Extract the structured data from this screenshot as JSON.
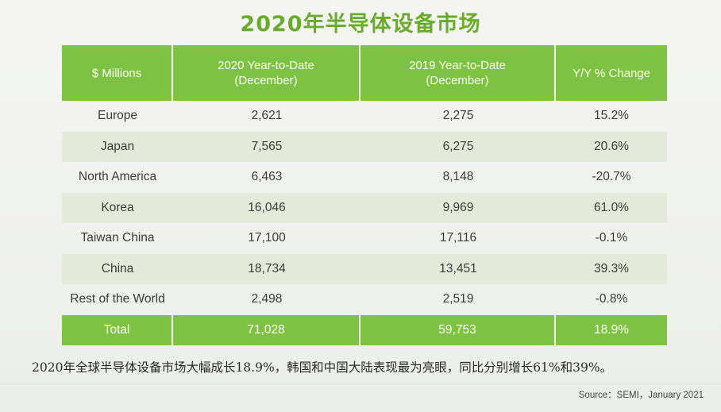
{
  "title": "2020年半导体设备市场",
  "chart_data": {
    "type": "table",
    "columns": [
      "$ Millions",
      [
        "2020 Year-to-Date",
        "(December)"
      ],
      [
        "2019 Year-to-Date",
        "(December)"
      ],
      "Y/Y % Change"
    ],
    "rows": [
      {
        "region": "Europe",
        "ytd_2020": "2,621",
        "ytd_2019": "2,275",
        "yoy": "15.2%"
      },
      {
        "region": "Japan",
        "ytd_2020": "7,565",
        "ytd_2019": "6,275",
        "yoy": "20.6%"
      },
      {
        "region": "North America",
        "ytd_2020": "6,463",
        "ytd_2019": "8,148",
        "yoy": "-20.7%"
      },
      {
        "region": "Korea",
        "ytd_2020": "16,046",
        "ytd_2019": "9,969",
        "yoy": "61.0%"
      },
      {
        "region": "Taiwan China",
        "ytd_2020": "17,100",
        "ytd_2019": "17,116",
        "yoy": "-0.1%"
      },
      {
        "region": "China",
        "ytd_2020": "18,734",
        "ytd_2019": "13,451",
        "yoy": "39.3%"
      },
      {
        "region": "Rest of the World",
        "ytd_2020": "2,498",
        "ytd_2019": "2,519",
        "yoy": "-0.8%"
      }
    ],
    "total": {
      "region": "Total",
      "ytd_2020": "71,028",
      "ytd_2019": "59,753",
      "yoy": "18.9%"
    },
    "header_color": "#7dc242",
    "shade_color": "#e3ead9"
  },
  "caption": "2020年全球半导体设备市场大幅成长18.9%，韩国和中国大陆表现最为亮眼，同比分别增长61%和39%。",
  "source": "Source：SEMI，January 2021"
}
